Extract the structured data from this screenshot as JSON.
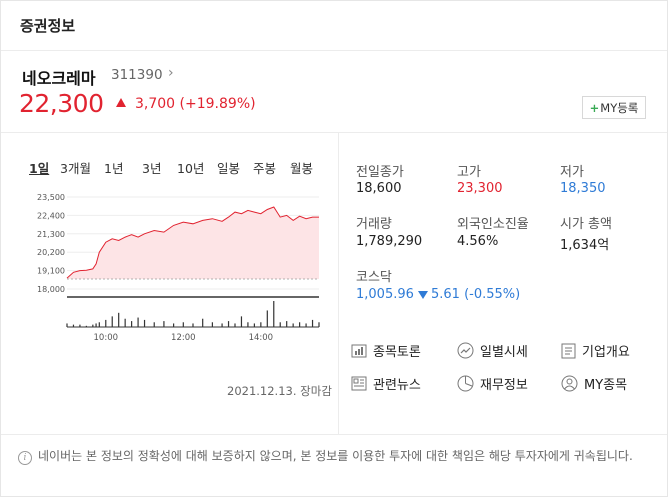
{
  "header": {
    "title": "증권정보"
  },
  "stock": {
    "name": "네오크레마",
    "code": "311390",
    "code_chevron": "›",
    "price": "22,300",
    "change": "3,700",
    "change_pct": "(+19.89%)",
    "my_button_plus": "+",
    "my_button": "MY등록"
  },
  "chart": {
    "tabs": [
      "1일",
      "3개월",
      "1년",
      "3년",
      "10년",
      "일봉",
      "주봉",
      "월봉"
    ],
    "active_tab": 0,
    "date": "2021.12.13. 장마감",
    "colors": {
      "line": "#e12330",
      "fill": "#fde4e6",
      "base": "#333333",
      "volume": "#333333"
    }
  },
  "chart_data": {
    "type": "area",
    "title": "",
    "xlabel": "",
    "ylabel": "",
    "yticks": [
      "23,500",
      "22,400",
      "21,300",
      "20,200",
      "19,100",
      "18,000"
    ],
    "ylim": [
      18000,
      23500
    ],
    "xticks": [
      "10:00",
      "12:00",
      "14:00"
    ],
    "xlim": [
      "09:00",
      "15:30"
    ],
    "previous_close": 18600,
    "grid": true,
    "series": [
      {
        "values_time": [
          "09:00",
          "09:10",
          "09:20",
          "09:30",
          "09:40",
          "09:45",
          "09:50",
          "10:00",
          "10:10",
          "10:20",
          "10:30",
          "10:40",
          "10:50",
          "11:00",
          "11:15",
          "11:30",
          "11:45",
          "12:00",
          "12:15",
          "12:30",
          "12:45",
          "13:00",
          "13:10",
          "13:20",
          "13:30",
          "13:40",
          "13:50",
          "14:00",
          "14:10",
          "14:20",
          "14:30",
          "14:40",
          "14:50",
          "15:00",
          "15:10",
          "15:20",
          "15:30"
        ],
        "values": [
          18650,
          19000,
          19100,
          19120,
          19200,
          19500,
          20200,
          20800,
          21000,
          20900,
          21100,
          21250,
          21100,
          21300,
          21500,
          21400,
          21800,
          22000,
          21900,
          22100,
          22200,
          22050,
          22300,
          22600,
          22500,
          22700,
          22600,
          22500,
          22750,
          22900,
          22300,
          22400,
          22100,
          22350,
          22200,
          22300,
          22300
        ]
      }
    ],
    "volume": [
      3,
      2,
      2,
      1,
      2,
      3,
      4,
      6,
      9,
      12,
      7,
      5,
      8,
      6,
      4,
      5,
      3,
      4,
      3,
      7,
      4,
      3,
      5,
      3,
      9,
      4,
      3,
      4,
      14,
      22,
      4,
      5,
      3,
      4,
      3,
      6,
      4
    ]
  },
  "stats": {
    "prev_close_label": "전일종가",
    "prev_close": "18,600",
    "high_label": "고가",
    "high": "23,300",
    "low_label": "저가",
    "low": "18,350",
    "volume_label": "거래량",
    "volume": "1,789,290",
    "foreign_label": "외국인소진율",
    "foreign": "4.56%",
    "mcap_label": "시가 총액",
    "mcap": "1,634억",
    "index_label": "코스닥",
    "index_value": "1,005.96",
    "index_change": "5.61 (-0.55%)"
  },
  "links": {
    "discussion": "종목토론",
    "daily": "일별시세",
    "company": "기업개요",
    "news": "관련뉴스",
    "finance": "재무정보",
    "my": "MY종목"
  },
  "notice": "네이버는 본 정보의 정확성에 대해 보증하지 않으며, 본 정보를 이용한 투자에 대한 책임은 해당 투자자에게 귀속됩니다."
}
